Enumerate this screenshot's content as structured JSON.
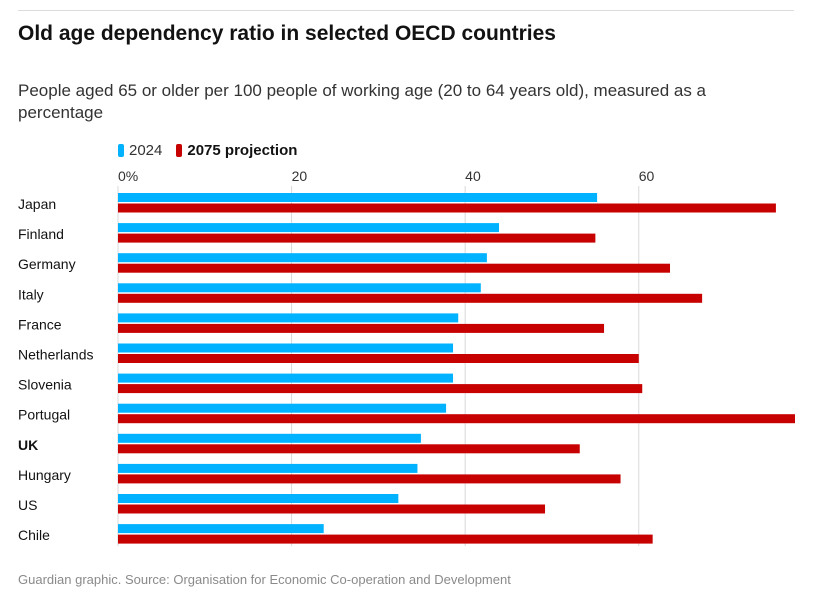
{
  "title": "Old age dependency ratio in selected OECD countries",
  "subtitle": "People aged 65 or older per 100 people of working age (20 to 64 years old), measured as a percentage",
  "footer": "Guardian graphic. Source: Organisation for Economic Co-operation and Development",
  "colors": {
    "series_2024": "#00b2ff",
    "series_2075": "#c70000",
    "grid": "#d9d9d9",
    "text": "#121212"
  },
  "legend": {
    "label_2024": "2024",
    "label_2075": "2075 projection"
  },
  "chart_data": {
    "type": "bar",
    "orientation": "horizontal",
    "title": "Old age dependency ratio in selected OECD countries",
    "xlabel": "",
    "ylabel": "",
    "xlim": [
      0,
      78
    ],
    "ticks": [
      0,
      20,
      40,
      60
    ],
    "tick_labels": [
      "0%",
      "20",
      "40",
      "60"
    ],
    "categories": [
      "Japan",
      "Finland",
      "Germany",
      "Italy",
      "France",
      "Netherlands",
      "Slovenia",
      "Portugal",
      "UK",
      "Hungary",
      "US",
      "Chile"
    ],
    "series": [
      {
        "name": "2024",
        "values": [
          55.2,
          43.9,
          42.5,
          41.8,
          39.2,
          38.6,
          38.6,
          37.8,
          34.9,
          34.5,
          32.3,
          23.7
        ]
      },
      {
        "name": "2075 projection",
        "values": [
          75.8,
          55.0,
          63.6,
          67.3,
          56.0,
          60.0,
          60.4,
          78.0,
          53.2,
          57.9,
          49.2,
          61.6
        ]
      }
    ]
  }
}
